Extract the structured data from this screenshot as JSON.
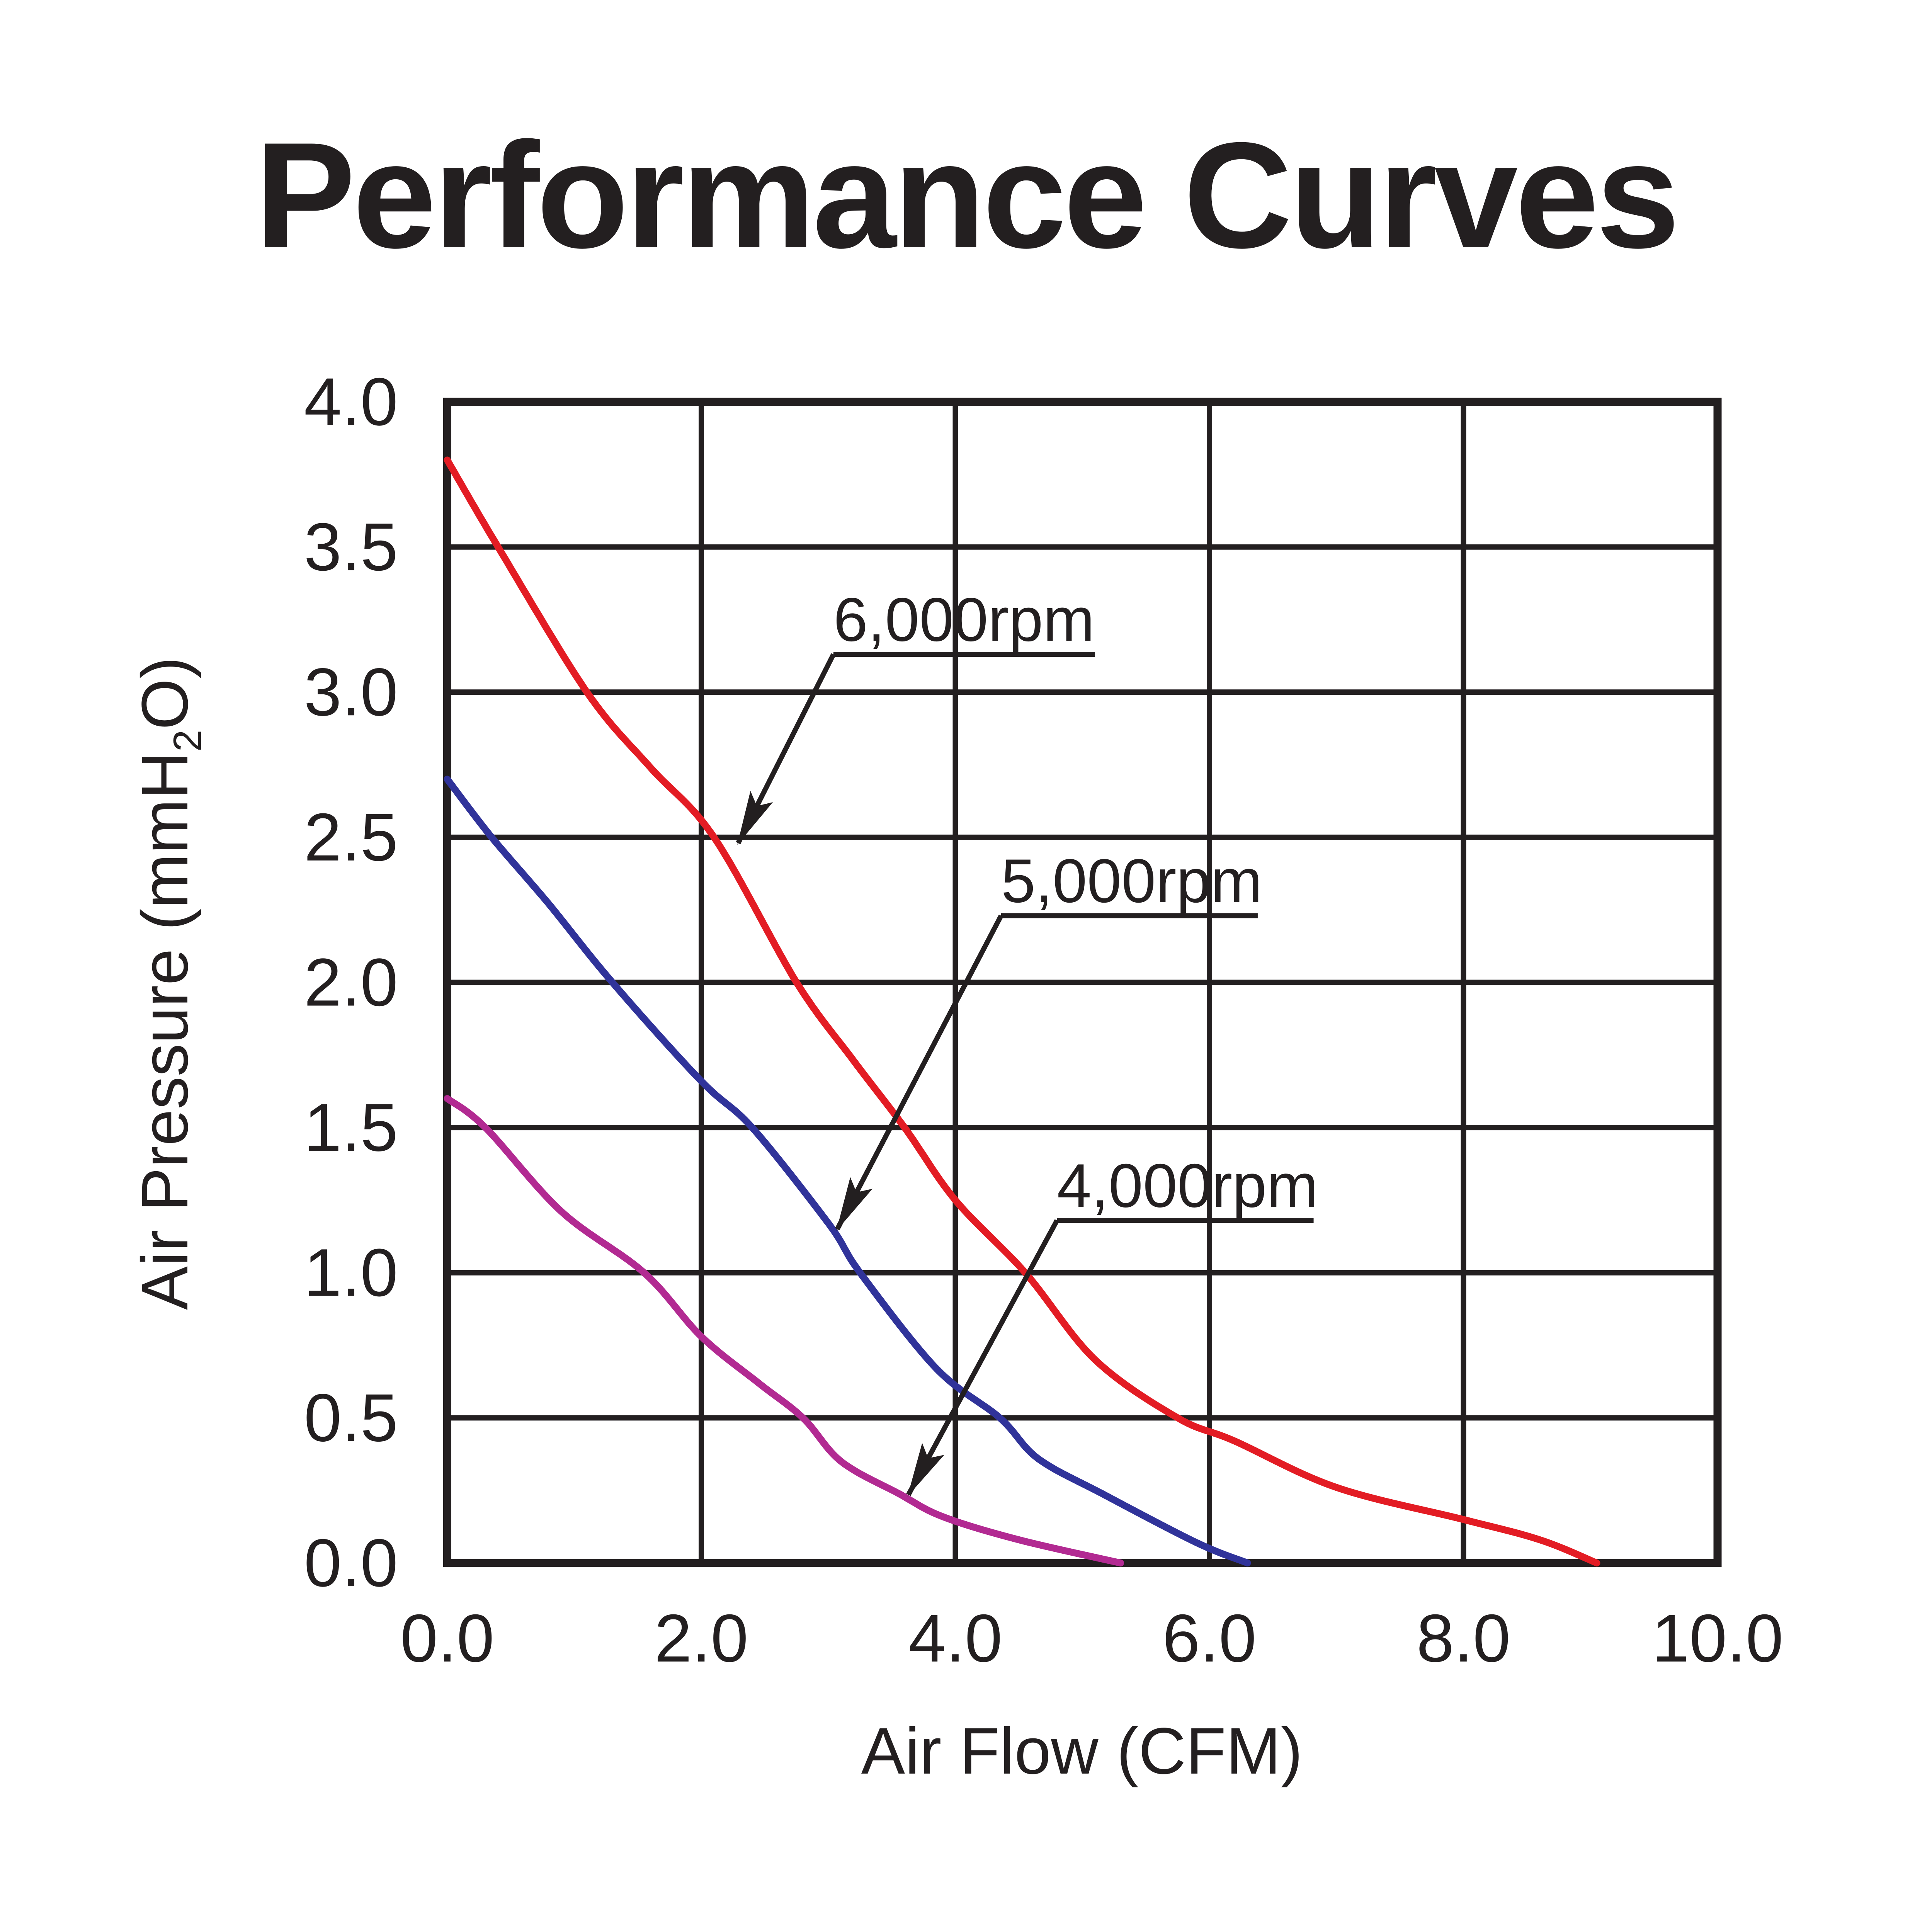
{
  "title": "Performance Curves",
  "chart_data": {
    "type": "line",
    "title": "Performance Curves",
    "xlabel": "Air Flow (CFM)",
    "ylabel": "Air Pressure (mmH2O)",
    "ylabel_parts": [
      {
        "t": "Air Pressure (mmH"
      },
      {
        "sub": "2"
      },
      {
        "t": "O)"
      }
    ],
    "xlim": [
      0,
      10
    ],
    "ylim": [
      0,
      4
    ],
    "grid": {
      "on": true,
      "x_lines": [
        2,
        4,
        6,
        8
      ],
      "y_lines": [
        0.5,
        1.0,
        1.5,
        2.0,
        2.5,
        3.0,
        3.5
      ]
    },
    "x_ticks": {
      "values": [
        0,
        2,
        4,
        6,
        8,
        10
      ],
      "labels": [
        "0.0",
        "2.0",
        "4.0",
        "6.0",
        "8.0",
        "10.0"
      ]
    },
    "y_ticks": {
      "values": [
        0,
        0.5,
        1.0,
        1.5,
        2.0,
        2.5,
        3.0,
        3.5,
        4.0
      ],
      "labels": [
        "0.0",
        "0.5",
        "1.0",
        "1.5",
        "2.0",
        "2.5",
        "3.0",
        "3.5",
        "4.0"
      ]
    },
    "legend_position": "inline-annotations",
    "series": [
      {
        "name": "6,000rpm",
        "color": "#e31c24",
        "points": [
          [
            0,
            3.8
          ],
          [
            0.4,
            3.5
          ],
          [
            1.1,
            3.0
          ],
          [
            1.6,
            2.74
          ],
          [
            2.1,
            2.5
          ],
          [
            2.75,
            2.0
          ],
          [
            3.2,
            1.73
          ],
          [
            3.6,
            1.5
          ],
          [
            4.0,
            1.25
          ],
          [
            4.55,
            1.0
          ],
          [
            5.1,
            0.7
          ],
          [
            5.75,
            0.5
          ],
          [
            6.2,
            0.42
          ],
          [
            7.0,
            0.26
          ],
          [
            8.0,
            0.15
          ],
          [
            8.6,
            0.08
          ],
          [
            9.05,
            0
          ]
        ]
      },
      {
        "name": "5,000rpm",
        "color": "#30339a",
        "points": [
          [
            0,
            2.7
          ],
          [
            0.35,
            2.5
          ],
          [
            0.8,
            2.27
          ],
          [
            1.3,
            2.0
          ],
          [
            2.0,
            1.66
          ],
          [
            2.4,
            1.5
          ],
          [
            3.0,
            1.17
          ],
          [
            3.25,
            1.0
          ],
          [
            3.85,
            0.67
          ],
          [
            4.35,
            0.5
          ],
          [
            4.65,
            0.36
          ],
          [
            5.15,
            0.24
          ],
          [
            5.9,
            0.07
          ],
          [
            6.3,
            0
          ]
        ]
      },
      {
        "name": "4,000rpm",
        "color": "#b22a92",
        "points": [
          [
            0,
            1.6
          ],
          [
            0.3,
            1.5
          ],
          [
            0.9,
            1.21
          ],
          [
            1.55,
            1.0
          ],
          [
            2.0,
            0.78
          ],
          [
            2.45,
            0.62
          ],
          [
            2.8,
            0.5
          ],
          [
            3.1,
            0.35
          ],
          [
            3.55,
            0.24
          ],
          [
            3.9,
            0.16
          ],
          [
            4.5,
            0.08
          ],
          [
            5.3,
            0
          ]
        ]
      }
    ],
    "annotations": [
      {
        "label": "6,000rpm",
        "underline_x1": 3.04,
        "underline_x2": 5.1,
        "underline_y": 3.13,
        "arrow_tip": [
          2.29,
          2.48
        ]
      },
      {
        "label": "5,000rpm",
        "underline_x1": 4.36,
        "underline_x2": 6.38,
        "underline_y": 2.23,
        "arrow_tip": [
          3.07,
          1.15
        ]
      },
      {
        "label": "4,000rpm",
        "underline_x1": 4.8,
        "underline_x2": 6.82,
        "underline_y": 1.18,
        "arrow_tip": [
          3.63,
          0.235
        ]
      }
    ]
  },
  "colors": {
    "background": "#ffffff",
    "axis_and_text": "#231f20",
    "curve_6000rpm": "#e31c24",
    "curve_5000rpm": "#30339a",
    "curve_4000rpm": "#b22a92"
  }
}
